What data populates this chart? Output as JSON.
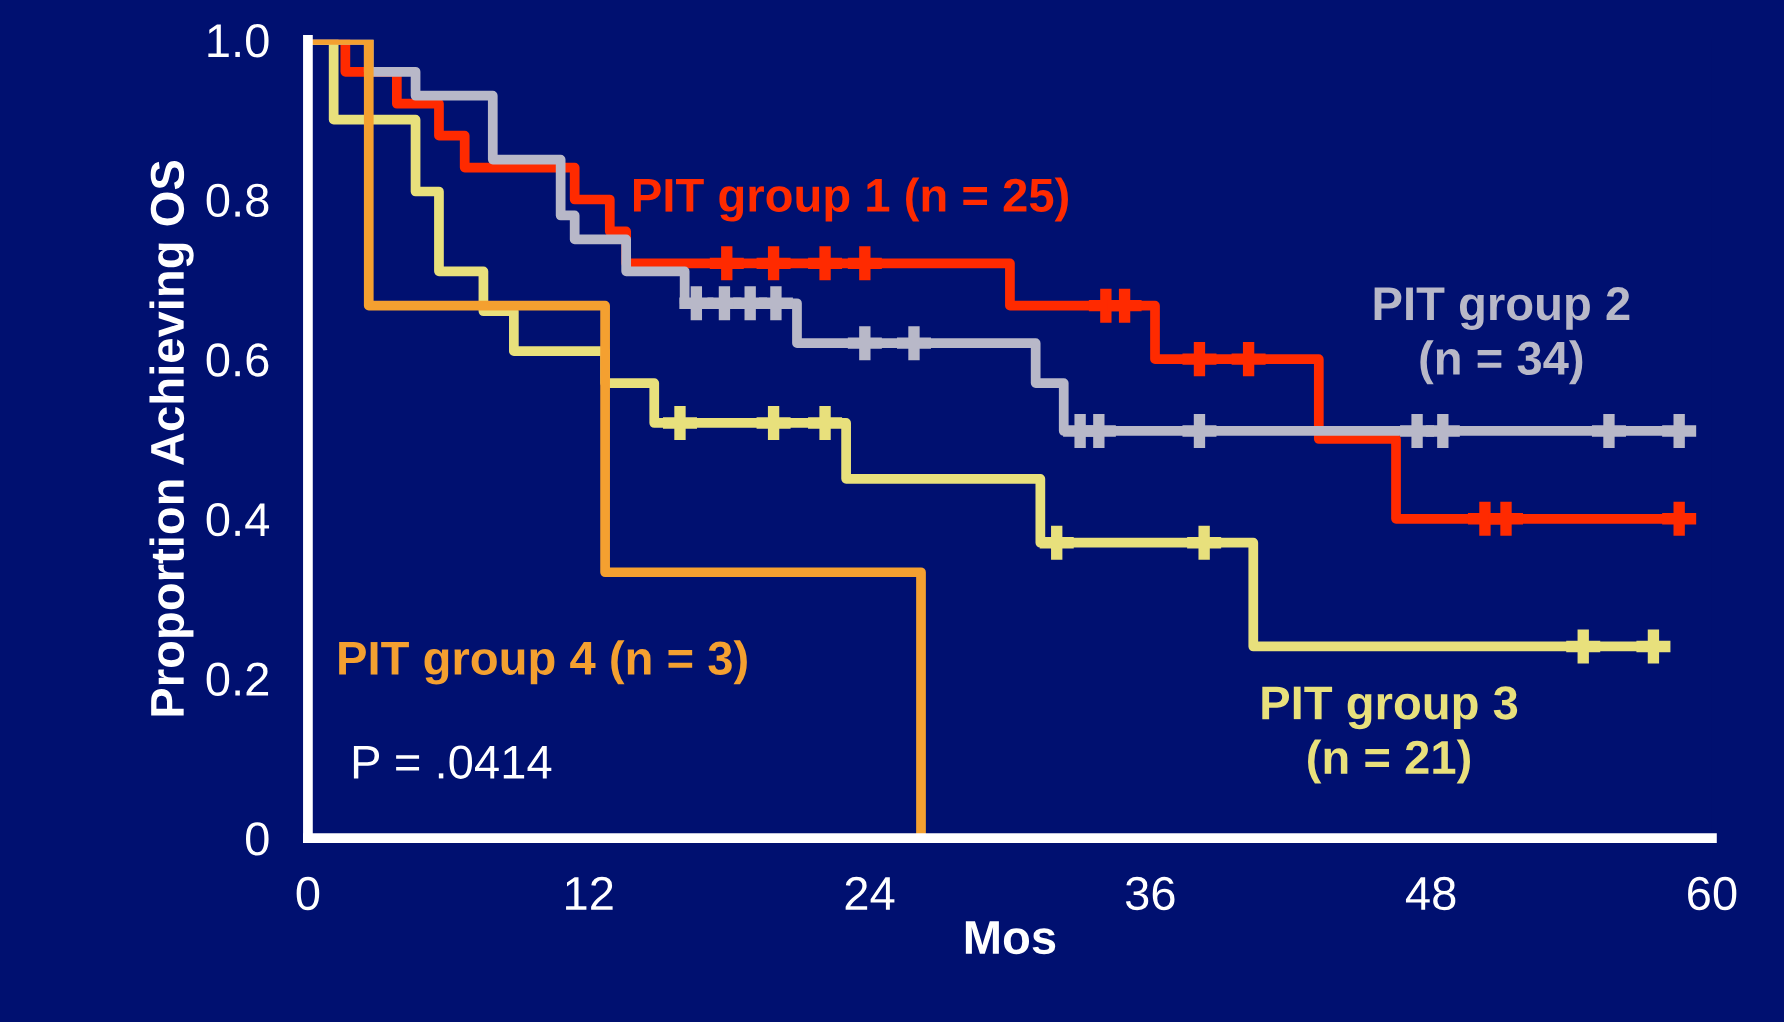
{
  "chart_data": {
    "type": "step",
    "xlabel": "Mos",
    "ylabel": "Proportion Achieving OS",
    "xlim": [
      0,
      60
    ],
    "xticks": [
      0,
      12,
      24,
      36,
      48,
      60
    ],
    "ylim": [
      0,
      1.0
    ],
    "yticks": [
      0,
      0.2,
      0.4,
      0.6,
      0.8,
      {
        "value": 1,
        "label": "1.0"
      }
    ],
    "grid": false,
    "legend": false,
    "annotations": [
      "P = .0414"
    ],
    "series": [
      {
        "name": "PIT group 1 (n = 25)",
        "color": "#ff2a00",
        "x": [
          0,
          1.6,
          3.8,
          5.6,
          6.7,
          11.4,
          11.9,
          12.9,
          13.6,
          30.0,
          36.2,
          43.2,
          46.5,
          58.6
        ],
        "values": [
          1.0,
          0.96,
          0.92,
          0.88,
          0.84,
          0.8,
          0.8,
          0.76,
          0.72,
          0.667,
          0.6,
          0.5,
          0.4,
          0.4
        ]
      },
      {
        "type": "scatter",
        "color": "#ff2a00",
        "marker": "cross",
        "x": [
          17.9,
          19.9,
          22.1,
          23.8,
          34.1,
          34.9,
          38.1,
          40.2,
          50.3,
          51.2,
          58.6
        ],
        "values": [
          0.72,
          0.72,
          0.72,
          0.72,
          0.667,
          0.667,
          0.6,
          0.6,
          0.4,
          0.4,
          0.4
        ]
      },
      {
        "name": "PIT group 2\n(n = 34)",
        "color": "#b8b8c8",
        "x": [
          0,
          2.6,
          4.6,
          7.9,
          10.8,
          11.4,
          13.6,
          16.1,
          20.9,
          31.1,
          32.3,
          58.6
        ],
        "values": [
          1.0,
          0.96,
          0.93,
          0.85,
          0.78,
          0.75,
          0.71,
          0.67,
          0.62,
          0.57,
          0.51,
          0.51
        ]
      },
      {
        "type": "scatter",
        "color": "#b8b8c8",
        "marker": "cross",
        "x": [
          16.6,
          17.8,
          18.9,
          20.0,
          23.8,
          25.9,
          33.0,
          33.8,
          38.1,
          47.4,
          48.5,
          55.6,
          58.6
        ],
        "values": [
          0.67,
          0.67,
          0.67,
          0.67,
          0.62,
          0.62,
          0.51,
          0.51,
          0.51,
          0.51,
          0.51,
          0.51,
          0.51
        ]
      },
      {
        "name": "PIT group 3\n(n = 21)",
        "color": "#e8e07c",
        "x": [
          0,
          1.1,
          4.6,
          5.6,
          7.5,
          8.8,
          12.7,
          14.8,
          23.0,
          31.3,
          40.4,
          57.5
        ],
        "values": [
          1.0,
          0.9,
          0.81,
          0.71,
          0.66,
          0.61,
          0.57,
          0.52,
          0.45,
          0.37,
          0.24,
          0.24
        ]
      },
      {
        "type": "scatter",
        "color": "#e8e07c",
        "marker": "cross",
        "x": [
          15.9,
          19.9,
          22.1,
          32.0,
          38.3,
          54.5,
          57.5
        ],
        "values": [
          0.52,
          0.52,
          0.52,
          0.37,
          0.37,
          0.24,
          0.24
        ]
      },
      {
        "name": "PIT group 4 (n = 3)",
        "color": "#f4a030",
        "x": [
          0,
          2.6,
          12.7,
          26.2
        ],
        "values": [
          1.0,
          0.667,
          0.333,
          0
        ]
      }
    ]
  }
}
